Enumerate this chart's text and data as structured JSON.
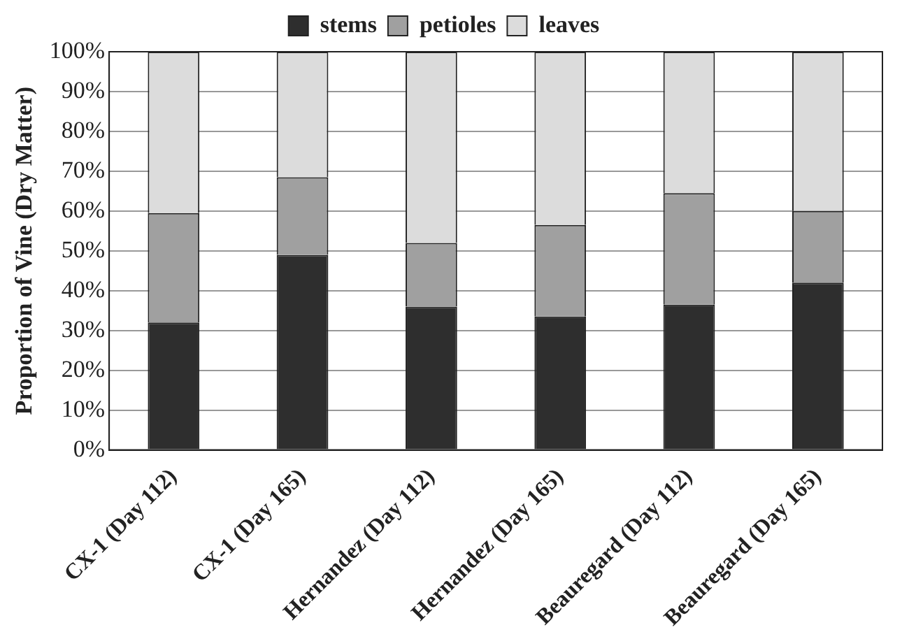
{
  "chart_data": {
    "type": "bar",
    "stacked": true,
    "ylabel": "Proportion of Vine (Dry Matter)",
    "categories": [
      "CX-1 (Day 112)",
      "CX-1 (Day 165)",
      "Hernandez (Day 112)",
      "Hernandez (Day 165)",
      "Beauregard (Day 112)",
      "Beauregard (Day 165)"
    ],
    "series": [
      {
        "name": "stems",
        "color": "#2e2e2e",
        "values": [
          32,
          49,
          36,
          33.5,
          36.5,
          42
        ]
      },
      {
        "name": "petioles",
        "color": "#a0a0a0",
        "values": [
          27.5,
          19.5,
          16,
          23,
          28,
          18
        ]
      },
      {
        "name": "leaves",
        "color": "#dcdcdc",
        "values": [
          40.5,
          31.5,
          48,
          43.5,
          35.5,
          40
        ]
      }
    ],
    "ylim": [
      0,
      100
    ],
    "yticks": [
      {
        "value": 0,
        "label": "0%"
      },
      {
        "value": 10,
        "label": "10%"
      },
      {
        "value": 20,
        "label": "20%"
      },
      {
        "value": 30,
        "label": "30%"
      },
      {
        "value": 40,
        "label": "40%"
      },
      {
        "value": 50,
        "label": "50%"
      },
      {
        "value": 60,
        "label": "60%"
      },
      {
        "value": 70,
        "label": "70%"
      },
      {
        "value": 80,
        "label": "80%"
      },
      {
        "value": 90,
        "label": "90%"
      },
      {
        "value": 100,
        "label": "100%"
      }
    ],
    "grid": "y",
    "legend": "top"
  }
}
